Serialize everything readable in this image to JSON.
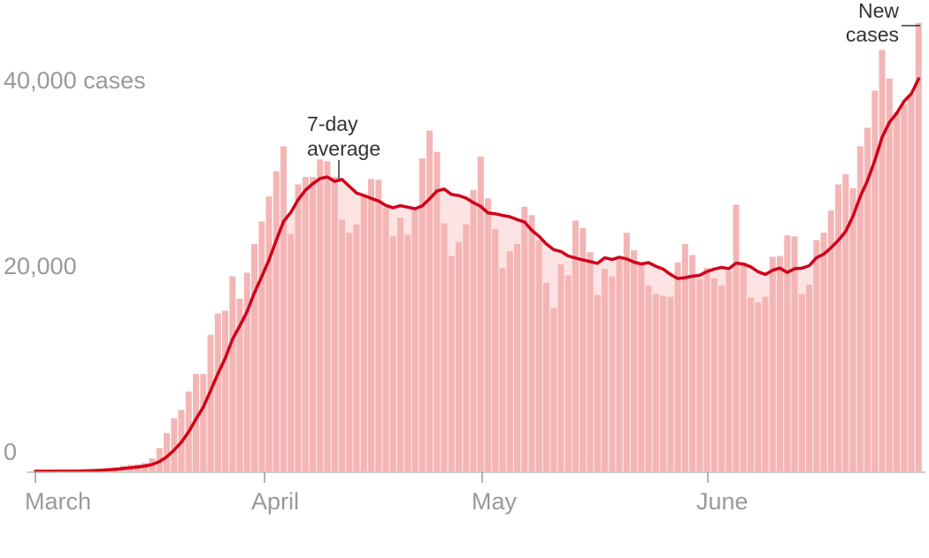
{
  "chart_data": {
    "type": "bar",
    "title": "",
    "xlabel": "",
    "ylabel": "",
    "ylim": [
      0,
      48300
    ],
    "grid": false,
    "legend": "none",
    "x_start": "2020-03-01",
    "x_end": "2020-06-30",
    "y_ticks": [
      {
        "value": 0,
        "label": "0"
      },
      {
        "value": 20000,
        "label": "20,000"
      },
      {
        "value": 40000,
        "label": "40,000 cases"
      }
    ],
    "x_ticks": [
      {
        "date": "2020-03-01",
        "label": "March"
      },
      {
        "date": "2020-04-01",
        "label": "April"
      },
      {
        "date": "2020-05-01",
        "label": "May"
      },
      {
        "date": "2020-06-01",
        "label": "June"
      }
    ],
    "series": [
      {
        "name": "New cases",
        "type": "bar",
        "color": "#f4b5b5",
        "values": [
          5,
          10,
          20,
          30,
          50,
          70,
          100,
          120,
          180,
          250,
          350,
          450,
          600,
          700,
          750,
          900,
          1400,
          2500,
          4100,
          5700,
          6600,
          8600,
          10500,
          10500,
          14700,
          17000,
          17300,
          21000,
          18600,
          21400,
          24500,
          26900,
          29600,
          32300,
          35000,
          25600,
          30900,
          31700,
          31700,
          33600,
          33400,
          31700,
          27100,
          25700,
          26600,
          29800,
          31500,
          31400,
          28400,
          25300,
          27300,
          25500,
          28500,
          33700,
          36700,
          34400,
          26700,
          23200,
          24700,
          26600,
          30300,
          33900,
          29400,
          26100,
          21900,
          23700,
          24500,
          28500,
          27600,
          24900,
          20300,
          17600,
          22300,
          21100,
          27000,
          26200,
          23600,
          19000,
          21800,
          21000,
          22800,
          25700,
          23800,
          22200,
          20000,
          19100,
          18900,
          18800,
          22500,
          24500,
          23300,
          20700,
          21900,
          20800,
          20000,
          21600,
          28700,
          22500,
          18700,
          18200,
          18800,
          23100,
          23200,
          25400,
          25300,
          19100,
          20100,
          24900,
          25700,
          28100,
          30900,
          32000,
          30500,
          35000,
          37000,
          41000,
          45400,
          42300,
          38700,
          39600,
          40600,
          48300
        ]
      },
      {
        "name": "7-day average",
        "type": "line",
        "color": "#d0021b",
        "window": 7
      }
    ],
    "annotations": [
      {
        "text_lines": [
          "7-day",
          "average"
        ],
        "target": "7-day average"
      },
      {
        "text_lines": [
          "New",
          "cases"
        ],
        "target": "New cases"
      }
    ],
    "shade_color": "#fde3e3"
  }
}
